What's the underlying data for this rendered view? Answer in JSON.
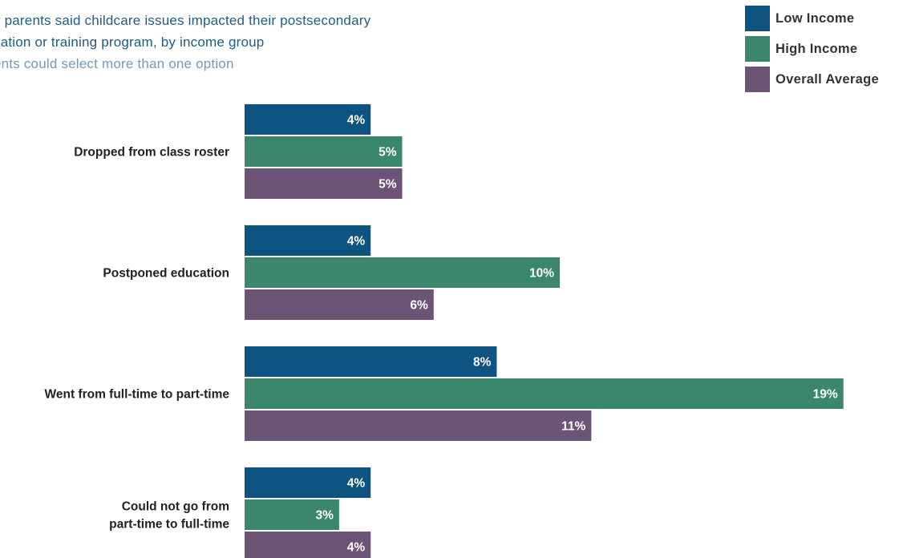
{
  "title_lines": [
    "y parents said childcare issues impacted their postsecondary",
    "cation or training program, by income group"
  ],
  "subtitle": "ents could select more than one option",
  "colors": {
    "low_income": "#0e5480",
    "high_income": "#3a876e",
    "overall_average": "#6b5476",
    "title": "#1f5b82",
    "subtitle": "#6f9bbd"
  },
  "legend": [
    {
      "label": "Low Income",
      "color": "#0e5480"
    },
    {
      "label": "High Income",
      "color": "#3a876e"
    },
    {
      "label": "Overall Average",
      "color": "#6b5476"
    }
  ],
  "chart_data": {
    "type": "bar",
    "orientation": "horizontal",
    "categories": [
      [
        "Dropped from class roster"
      ],
      [
        "Postponed education"
      ],
      [
        "Went from full-time to part-time"
      ],
      [
        "Could not go from",
        "part-time to full-time"
      ]
    ],
    "series": [
      {
        "name": "Low Income",
        "color": "#0e5480",
        "values": [
          4,
          4,
          8,
          4
        ]
      },
      {
        "name": "High Income",
        "color": "#3a876e",
        "values": [
          5,
          10,
          19,
          3
        ]
      },
      {
        "name": "Overall Average",
        "color": "#6b5476",
        "values": [
          5,
          6,
          11,
          4
        ]
      }
    ],
    "value_suffix": "%",
    "xlim": [
      0,
      19
    ],
    "grid": false,
    "legend_position": "top-right"
  }
}
